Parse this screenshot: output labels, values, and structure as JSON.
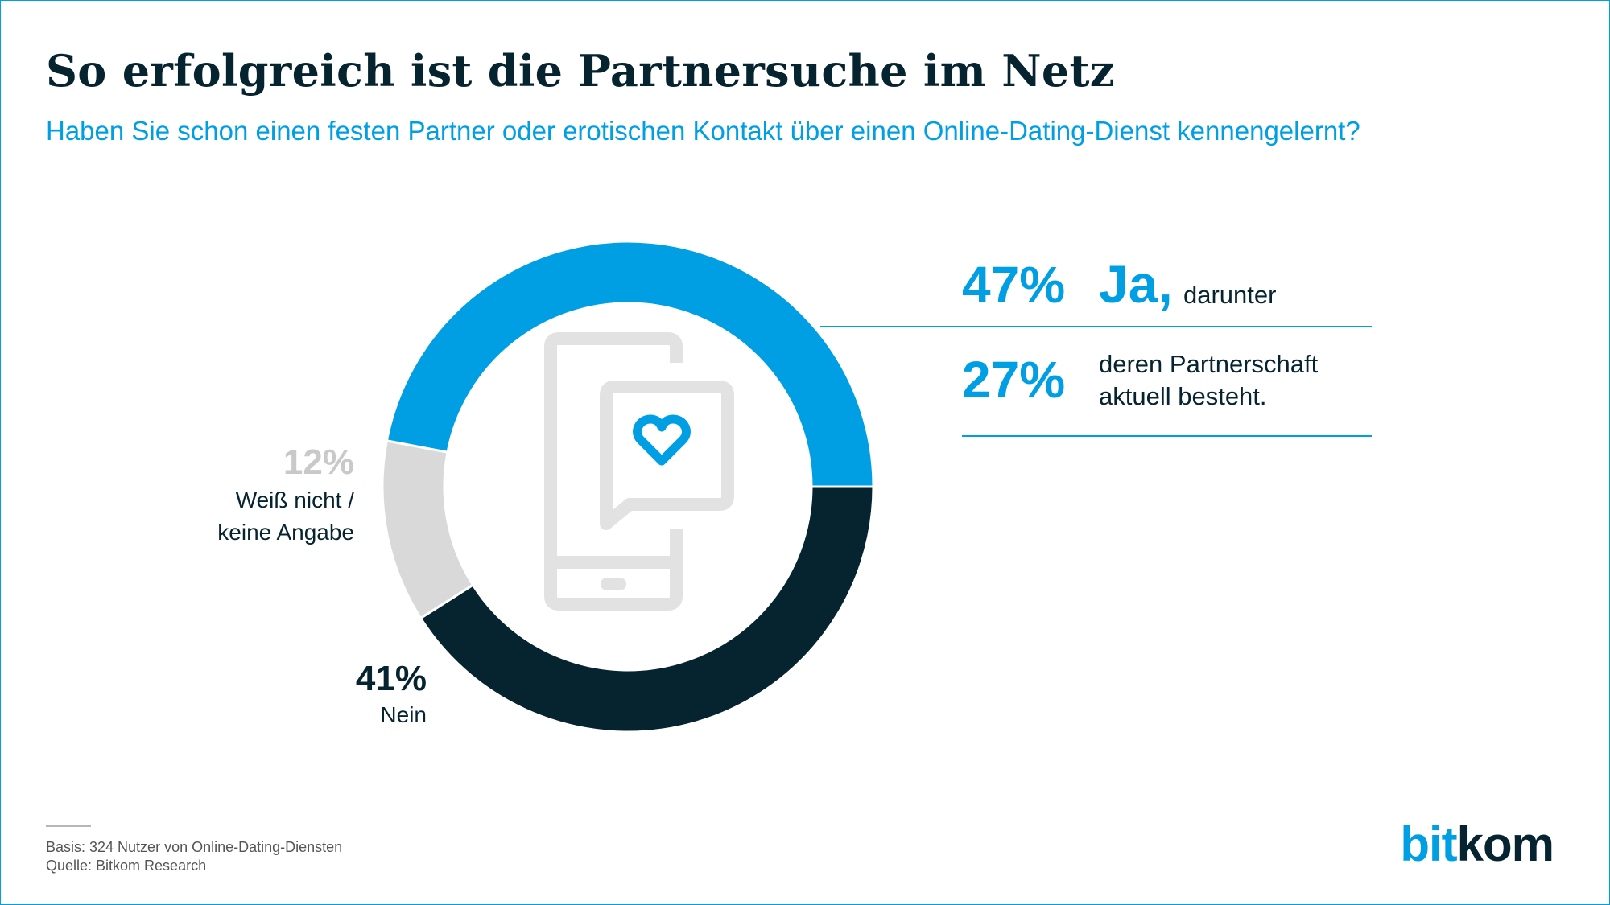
{
  "title": "So erfolgreich ist die Partnersuche im Netz",
  "subtitle": "Haben Sie schon einen festen Partner oder erotischen Kontakt über einen Online-Dating-Dienst kennengelernt?",
  "labels": {
    "ja_pct": "47%",
    "ja_word": "Ja,",
    "ja_suffix": "darunter",
    "sub_pct": "27%",
    "sub_line1": "deren Partnerschaft",
    "sub_line2": "aktuell besteht.",
    "weiss_pct": "12%",
    "weiss_line1": "Weiß nicht /",
    "weiss_line2": "keine Angabe",
    "nein_pct": "41%",
    "nein_word": "Nein"
  },
  "footer": {
    "basis": "Basis: 324 Nutzer von Online-Dating-Diensten",
    "quelle": "Quelle: Bitkom Research"
  },
  "logo": {
    "part1": "bit",
    "part2": "kom"
  },
  "colors": {
    "ja": "#009fe3",
    "nein": "#062430",
    "weiss": "#d9d9d9",
    "icon": "#e2e2e2"
  },
  "chart_data": {
    "type": "pie",
    "donut": true,
    "title": "So erfolgreich ist die Partnersuche im Netz",
    "subtitle": "Haben Sie schon einen festen Partner oder erotischen Kontakt über einen Online-Dating-Dienst kennengelernt?",
    "slices": [
      {
        "label": "Ja",
        "value": 47,
        "color": "#009fe3"
      },
      {
        "label": "Nein",
        "value": 41,
        "color": "#062430"
      },
      {
        "label": "Weiß nicht / keine Angabe",
        "value": 12,
        "color": "#d9d9d9"
      }
    ],
    "sub_value": {
      "label": "deren Partnerschaft aktuell besteht.",
      "value": 27
    }
  }
}
